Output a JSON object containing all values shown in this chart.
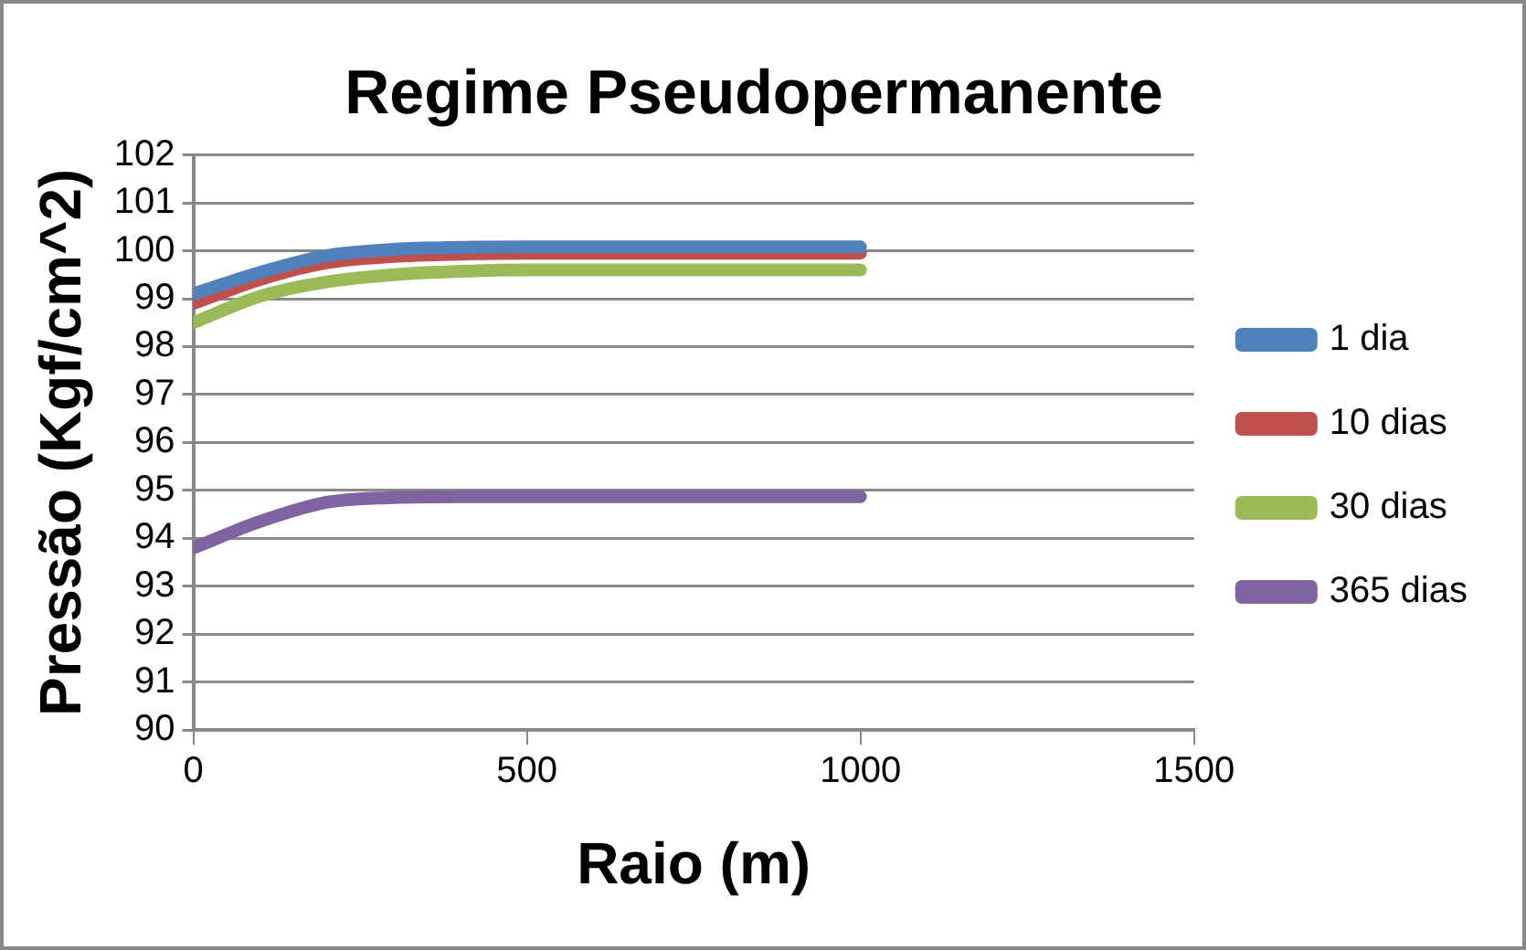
{
  "chart_data": {
    "type": "line",
    "title": "Regime Pseudopermanente",
    "xlabel": "Raio (m)",
    "ylabel": "Pressão (Kgf/cm^2)",
    "x": [
      0,
      100,
      200,
      300,
      400,
      500,
      750,
      1000
    ],
    "series": [
      {
        "name": "1 dia",
        "color": "#4f81bd",
        "values": [
          99.1,
          99.55,
          99.9,
          100.03,
          100.07,
          100.08,
          100.08,
          100.08
        ]
      },
      {
        "name": "10 dias",
        "color": "#c0504d",
        "values": [
          98.9,
          99.4,
          99.75,
          99.88,
          99.93,
          99.95,
          99.95,
          99.95
        ]
      },
      {
        "name": "30 dias",
        "color": "#9bbb59",
        "values": [
          98.5,
          99.05,
          99.35,
          99.5,
          99.57,
          99.6,
          99.6,
          99.6
        ]
      },
      {
        "name": "365 dias",
        "color": "#8064a2",
        "values": [
          93.8,
          94.35,
          94.75,
          94.85,
          94.87,
          94.87,
          94.87,
          94.87
        ]
      }
    ],
    "xlim": [
      0,
      1500
    ],
    "xticks": [
      0,
      500,
      1000,
      1500
    ],
    "ylim": [
      90,
      102
    ],
    "yticks": [
      90,
      91,
      92,
      93,
      94,
      95,
      96,
      97,
      98,
      99,
      100,
      101,
      102
    ],
    "grid": "y",
    "legend": "right",
    "marker": "none",
    "line_style": "solid"
  }
}
